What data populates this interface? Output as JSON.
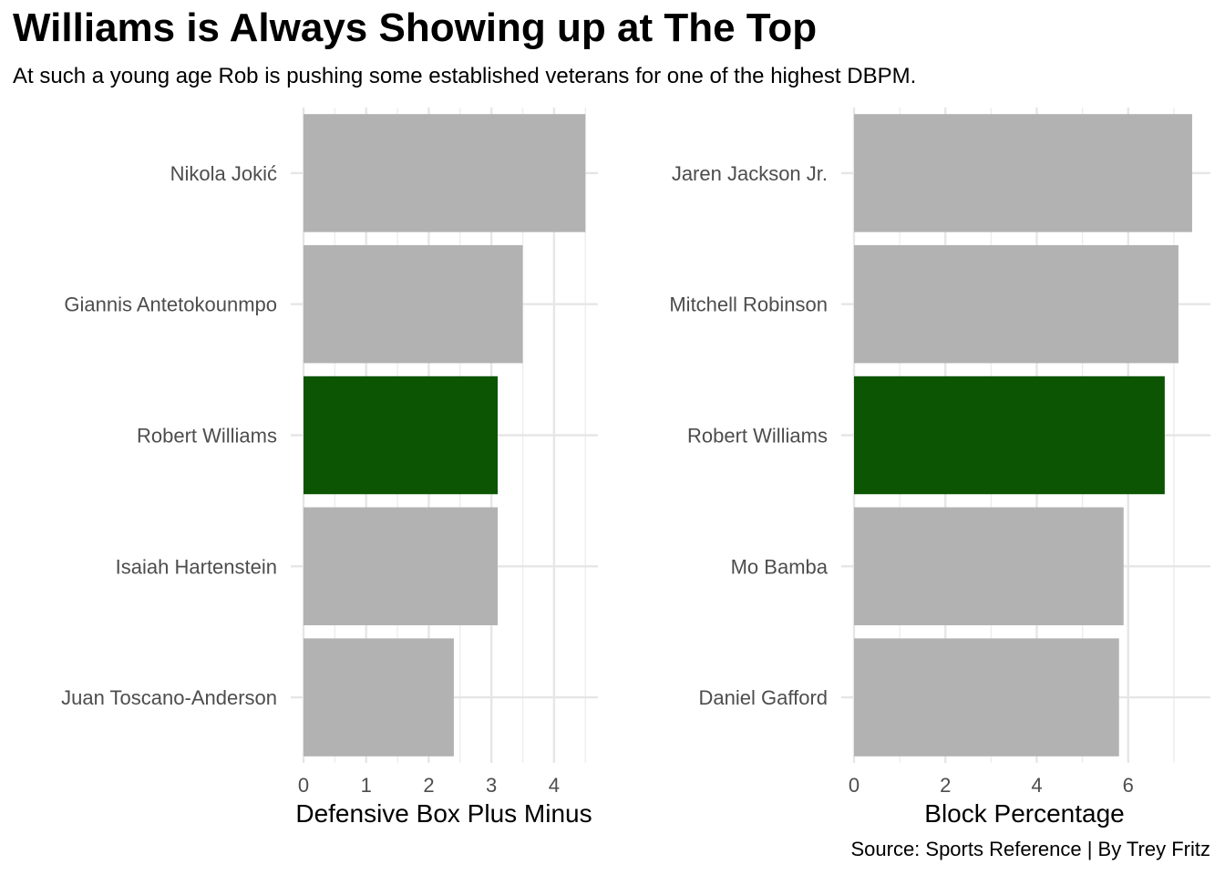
{
  "title": "Williams is Always Showing up at The Top",
  "subtitle": "At such a young age Rob is pushing some established veterans for one of the highest DBPM.",
  "caption": "Source: Sports Reference | By Trey Fritz",
  "colors": {
    "highlight": "#0b5503",
    "default": "#b2b2b2"
  },
  "chart_data": [
    {
      "type": "bar",
      "orientation": "horizontal",
      "categories": [
        "Nikola Jokić",
        "Giannis Antetokounmpo",
        "Robert Williams",
        "Isaiah Hartenstein",
        "Juan Toscano-Anderson"
      ],
      "values": [
        4.5,
        3.5,
        3.1,
        3.1,
        2.4
      ],
      "highlight": "Robert Williams",
      "xlabel": "Defensive Box Plus Minus",
      "xlim": [
        0,
        4.7
      ],
      "xticks": [
        0,
        1,
        2,
        3,
        4
      ],
      "grid": true
    },
    {
      "type": "bar",
      "orientation": "horizontal",
      "categories": [
        "Jaren Jackson Jr.",
        "Mitchell Robinson",
        "Robert Williams",
        "Mo Bamba",
        "Daniel Gafford"
      ],
      "values": [
        7.4,
        7.1,
        6.8,
        5.9,
        5.8
      ],
      "highlight": "Robert Williams",
      "xlabel": "Block Percentage",
      "xlim": [
        0,
        7.8
      ],
      "xticks": [
        0,
        2,
        4,
        6
      ],
      "grid": true
    }
  ]
}
